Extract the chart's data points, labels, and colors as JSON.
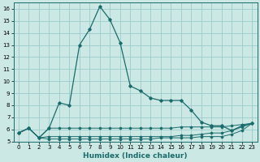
{
  "xlabel": "Humidex (Indice chaleur)",
  "bg_color": "#cce8e4",
  "grid_color": "#99cccc",
  "line_color": "#1a6b6b",
  "xlim": [
    -0.5,
    23.5
  ],
  "ylim": [
    5,
    16.5
  ],
  "xticks": [
    0,
    1,
    2,
    3,
    4,
    5,
    6,
    7,
    8,
    9,
    10,
    11,
    12,
    13,
    14,
    15,
    16,
    17,
    18,
    19,
    20,
    21,
    22,
    23
  ],
  "yticks": [
    5,
    6,
    7,
    8,
    9,
    10,
    11,
    12,
    13,
    14,
    15,
    16
  ],
  "series": [
    [
      5.7,
      6.1,
      5.3,
      6.1,
      8.2,
      8.0,
      13.0,
      14.3,
      16.2,
      15.1,
      13.2,
      9.6,
      9.2,
      8.6,
      8.4,
      8.4,
      8.4,
      7.6,
      6.6,
      6.3,
      6.3,
      5.9,
      6.3,
      6.5
    ],
    [
      5.7,
      6.1,
      5.3,
      6.1,
      6.1,
      6.1,
      6.1,
      6.1,
      6.1,
      6.1,
      6.1,
      6.1,
      6.1,
      6.1,
      6.1,
      6.1,
      6.2,
      6.2,
      6.2,
      6.2,
      6.2,
      6.3,
      6.4,
      6.5
    ],
    [
      5.7,
      6.1,
      5.3,
      5.4,
      5.4,
      5.4,
      5.4,
      5.4,
      5.4,
      5.4,
      5.4,
      5.4,
      5.4,
      5.4,
      5.4,
      5.4,
      5.5,
      5.5,
      5.6,
      5.7,
      5.7,
      5.9,
      6.2,
      6.5
    ],
    [
      5.7,
      6.1,
      5.3,
      5.2,
      5.2,
      5.2,
      5.2,
      5.2,
      5.2,
      5.2,
      5.2,
      5.2,
      5.2,
      5.2,
      5.3,
      5.3,
      5.3,
      5.3,
      5.4,
      5.4,
      5.4,
      5.6,
      5.9,
      6.5
    ]
  ],
  "xlabel_fontsize": 6.5,
  "tick_fontsize": 5.0
}
